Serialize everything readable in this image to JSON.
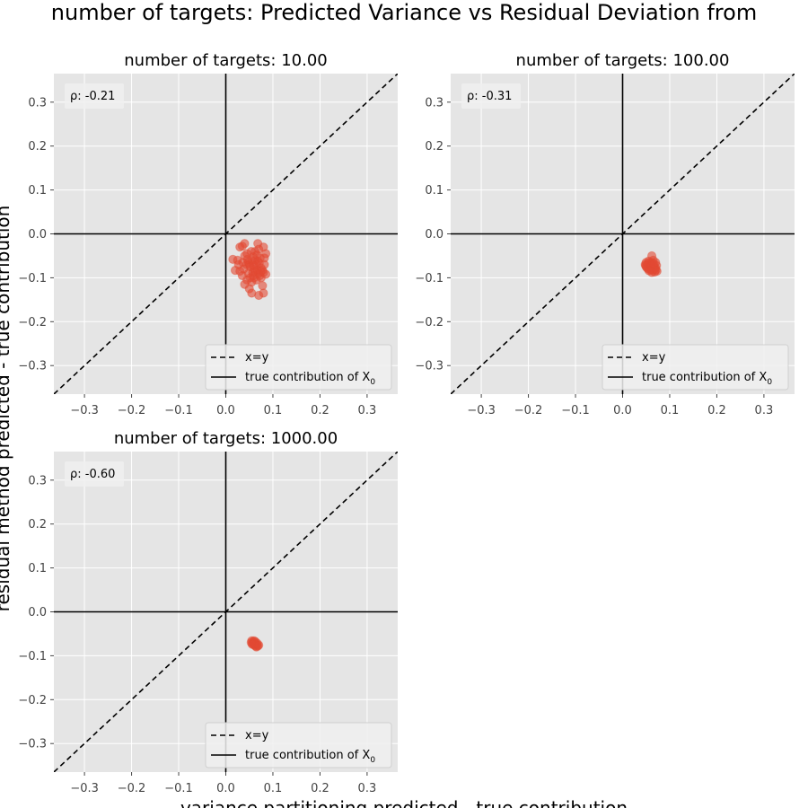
{
  "figure": {
    "suptitle": "number of targets: Predicted Variance vs Residual Deviation from",
    "xlabel": "variance partitioning predicted - true contribution",
    "ylabel": "residual method predicted - true contribution"
  },
  "colors": {
    "background": "#E5E5E5",
    "grid": "#FFFFFF",
    "points": "#E24A33",
    "lines": "#000000",
    "tick_text": "#444444"
  },
  "chart_data": [
    {
      "type": "scatter",
      "title": "number of targets: 10.00",
      "rho_label": "ρ: -0.21",
      "xlim": [
        -0.365,
        0.365
      ],
      "ylim": [
        -0.365,
        0.365
      ],
      "xticks": [
        "−0.3",
        "−0.2",
        "−0.1",
        "0.0",
        "0.1",
        "0.2",
        "0.3"
      ],
      "yticks": [
        "−0.3",
        "−0.2",
        "−0.1",
        "0.0",
        "0.1",
        "0.2",
        "0.3"
      ],
      "tick_values": [
        -0.3,
        -0.2,
        -0.1,
        0.0,
        0.1,
        0.2,
        0.3
      ],
      "legend": [
        "x=y",
        "true contribution of X",
        "0"
      ],
      "legend_position": "lower-right",
      "points": [
        [
          0.04,
          -0.022
        ],
        [
          0.035,
          -0.028
        ],
        [
          0.03,
          -0.03
        ],
        [
          0.068,
          -0.022
        ],
        [
          0.08,
          -0.03
        ],
        [
          0.015,
          -0.058
        ],
        [
          0.025,
          -0.06
        ],
        [
          0.02,
          -0.083
        ],
        [
          0.03,
          -0.085
        ],
        [
          0.035,
          -0.095
        ],
        [
          0.04,
          -0.05
        ],
        [
          0.045,
          -0.045
        ],
        [
          0.048,
          -0.065
        ],
        [
          0.05,
          -0.07
        ],
        [
          0.052,
          -0.075
        ],
        [
          0.055,
          -0.06
        ],
        [
          0.058,
          -0.052
        ],
        [
          0.06,
          -0.08
        ],
        [
          0.062,
          -0.085
        ],
        [
          0.065,
          -0.07
        ],
        [
          0.068,
          -0.062
        ],
        [
          0.07,
          -0.09
        ],
        [
          0.072,
          -0.095
        ],
        [
          0.075,
          -0.078
        ],
        [
          0.078,
          -0.083
        ],
        [
          0.08,
          -0.088
        ],
        [
          0.082,
          -0.055
        ],
        [
          0.085,
          -0.045
        ],
        [
          0.075,
          -0.1
        ],
        [
          0.065,
          -0.105
        ],
        [
          0.055,
          -0.11
        ],
        [
          0.045,
          -0.105
        ],
        [
          0.04,
          -0.115
        ],
        [
          0.05,
          -0.125
        ],
        [
          0.038,
          -0.08
        ],
        [
          0.058,
          -0.095
        ],
        [
          0.062,
          -0.04
        ],
        [
          0.07,
          -0.035
        ],
        [
          0.073,
          -0.055
        ],
        [
          0.066,
          -0.048
        ],
        [
          0.054,
          -0.04
        ],
        [
          0.044,
          -0.07
        ],
        [
          0.048,
          -0.09
        ],
        [
          0.06,
          -0.1
        ],
        [
          0.078,
          -0.118
        ],
        [
          0.08,
          -0.135
        ],
        [
          0.07,
          -0.14
        ],
        [
          0.055,
          -0.135
        ],
        [
          0.085,
          -0.092
        ],
        [
          0.082,
          -0.07
        ],
        [
          0.063,
          -0.06
        ],
        [
          0.057,
          -0.088
        ],
        [
          0.067,
          -0.082
        ],
        [
          0.071,
          -0.067
        ],
        [
          0.036,
          -0.065
        ],
        [
          0.027,
          -0.07
        ],
        [
          0.046,
          -0.058
        ],
        [
          0.059,
          -0.072
        ],
        [
          0.074,
          -0.086
        ],
        [
          0.052,
          -0.1
        ]
      ]
    },
    {
      "type": "scatter",
      "title": "number of targets: 100.00",
      "rho_label": "ρ: -0.31",
      "xlim": [
        -0.365,
        0.365
      ],
      "ylim": [
        -0.365,
        0.365
      ],
      "xticks": [
        "−0.3",
        "−0.2",
        "−0.1",
        "0.0",
        "0.1",
        "0.2",
        "0.3"
      ],
      "yticks": [
        "−0.3",
        "−0.2",
        "−0.1",
        "0.0",
        "0.1",
        "0.2",
        "0.3"
      ],
      "tick_values": [
        -0.3,
        -0.2,
        -0.1,
        0.0,
        0.1,
        0.2,
        0.3
      ],
      "legend": [
        "x=y",
        "true contribution of X",
        "0"
      ],
      "legend_position": "lower-right",
      "points": [
        [
          0.062,
          -0.05
        ],
        [
          0.055,
          -0.062
        ],
        [
          0.05,
          -0.065
        ],
        [
          0.048,
          -0.07
        ],
        [
          0.05,
          -0.075
        ],
        [
          0.052,
          -0.078
        ],
        [
          0.055,
          -0.08
        ],
        [
          0.058,
          -0.072
        ],
        [
          0.06,
          -0.068
        ],
        [
          0.062,
          -0.065
        ],
        [
          0.064,
          -0.07
        ],
        [
          0.066,
          -0.075
        ],
        [
          0.068,
          -0.08
        ],
        [
          0.07,
          -0.078
        ],
        [
          0.072,
          -0.072
        ],
        [
          0.073,
          -0.085
        ],
        [
          0.068,
          -0.087
        ],
        [
          0.062,
          -0.088
        ],
        [
          0.06,
          -0.082
        ],
        [
          0.065,
          -0.06
        ],
        [
          0.07,
          -0.065
        ],
        [
          0.053,
          -0.07
        ],
        [
          0.057,
          -0.065
        ],
        [
          0.059,
          -0.077
        ],
        [
          0.064,
          -0.083
        ],
        [
          0.071,
          -0.082
        ],
        [
          0.049,
          -0.072
        ],
        [
          0.061,
          -0.074
        ],
        [
          0.066,
          -0.068
        ],
        [
          0.056,
          -0.084
        ]
      ]
    },
    {
      "type": "scatter",
      "title": "number of targets: 1000.00",
      "rho_label": "ρ: -0.60",
      "xlim": [
        -0.365,
        0.365
      ],
      "ylim": [
        -0.365,
        0.365
      ],
      "xticks": [
        "−0.3",
        "−0.2",
        "−0.1",
        "0.0",
        "0.1",
        "0.2",
        "0.3"
      ],
      "yticks": [
        "−0.3",
        "−0.2",
        "−0.1",
        "0.0",
        "0.1",
        "0.2",
        "0.3"
      ],
      "tick_values": [
        -0.3,
        -0.2,
        -0.1,
        0.0,
        0.1,
        0.2,
        0.3
      ],
      "legend": [
        "x=y",
        "true contribution of X",
        "0"
      ],
      "legend_position": "lower-right",
      "points": [
        [
          0.055,
          -0.066
        ],
        [
          0.058,
          -0.068
        ],
        [
          0.06,
          -0.07
        ],
        [
          0.062,
          -0.072
        ],
        [
          0.064,
          -0.074
        ],
        [
          0.066,
          -0.076
        ],
        [
          0.068,
          -0.078
        ],
        [
          0.057,
          -0.072
        ],
        [
          0.059,
          -0.074
        ],
        [
          0.061,
          -0.076
        ],
        [
          0.063,
          -0.078
        ],
        [
          0.065,
          -0.08
        ],
        [
          0.06,
          -0.066
        ],
        [
          0.063,
          -0.068
        ],
        [
          0.067,
          -0.072
        ],
        [
          0.054,
          -0.07
        ],
        [
          0.056,
          -0.074
        ],
        [
          0.07,
          -0.076
        ]
      ]
    }
  ]
}
